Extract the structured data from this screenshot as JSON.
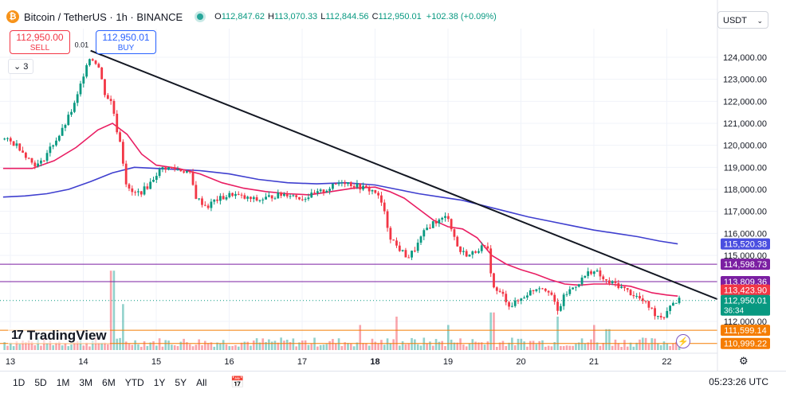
{
  "header": {
    "coin_glyph": "₿",
    "symbol": "Bitcoin / TetherUS · 1h · BINANCE",
    "o_label": "O",
    "o": "112,847.62",
    "h_label": "H",
    "h": "113,070.33",
    "l_label": "L",
    "l": "112,844.56",
    "c_label": "C",
    "c": "112,950.01",
    "change": "+102.38 (+0.09%)"
  },
  "trade": {
    "sell_price": "112,950.00",
    "sell_label": "SELL",
    "buy_price": "112,950.01",
    "buy_label": "BUY"
  },
  "collapse_label": "3",
  "currency": {
    "label": "USDT",
    "caret": "⌄"
  },
  "logo": {
    "mark": "17",
    "text": "TradingView"
  },
  "timeframes": [
    "1D",
    "5D",
    "1M",
    "3M",
    "6M",
    "YTD",
    "1Y",
    "5Y",
    "All"
  ],
  "calendar_icon": "📅",
  "clock": "05:23:26 UTC",
  "gear_icon": "⚙",
  "bolt_icon": "⚡",
  "chart_data": {
    "type": "candlestick",
    "timeframe": "1h",
    "x_ticks": [
      "13",
      "14",
      "15",
      "16",
      "17",
      "18",
      "19",
      "20",
      "21",
      "22"
    ],
    "y_ticks": [
      "124,000.00",
      "123,000.00",
      "122,000.00",
      "121,000.00",
      "120,000.00",
      "119,000.00",
      "118,000.00",
      "117,000.00",
      "116,000.00",
      "115,000.00",
      "112,000.00"
    ],
    "y_range": [
      110700,
      125300
    ],
    "fib_top_label": "0.01",
    "price_tags": [
      {
        "label": "115,520.38",
        "value": 115520.38,
        "color": "#4a4ee0"
      },
      {
        "label": "114,598.73",
        "value": 114598.73,
        "color": "#7b1fa2"
      },
      {
        "label": "113,809.36",
        "value": 113809.36,
        "color": "#7b1fa2"
      },
      {
        "label": "113,423.90",
        "value": 113423.9,
        "color": "#f23645"
      },
      {
        "label": "112,950.01",
        "sub": "36:34",
        "value": 112950.01,
        "color": "#089981"
      },
      {
        "label": "111,599.14",
        "value": 111599.14,
        "color": "#f57c00"
      },
      {
        "label": "110,999.22",
        "value": 110999.22,
        "color": "#f57c00"
      }
    ],
    "horizontal_lines": [
      {
        "value": 114598.73,
        "color": "#7b1fa2"
      },
      {
        "value": 113809.36,
        "color": "#7b1fa2"
      },
      {
        "value": 111599.14,
        "color": "#f57c00"
      },
      {
        "value": 110999.22,
        "color": "#f57c00"
      }
    ],
    "last_price": 112950.01,
    "trendline": [
      {
        "day": 14.1,
        "price": 124300
      },
      {
        "day": 22.7,
        "price": 113000
      }
    ],
    "ma_fast": [
      [
        12.9,
        118950
      ],
      [
        13.3,
        118950
      ],
      [
        13.6,
        119300
      ],
      [
        13.9,
        119900
      ],
      [
        14.2,
        120700
      ],
      [
        14.4,
        121000
      ],
      [
        14.6,
        120500
      ],
      [
        14.8,
        119600
      ],
      [
        15.0,
        119100
      ],
      [
        15.3,
        118950
      ],
      [
        15.6,
        118700
      ],
      [
        15.9,
        118300
      ],
      [
        16.2,
        118050
      ],
      [
        16.5,
        117900
      ],
      [
        16.8,
        117800
      ],
      [
        17.1,
        117750
      ],
      [
        17.4,
        117900
      ],
      [
        17.7,
        118050
      ],
      [
        18.0,
        118100
      ],
      [
        18.2,
        117900
      ],
      [
        18.4,
        117600
      ],
      [
        18.6,
        117100
      ],
      [
        18.8,
        116600
      ],
      [
        19.0,
        116300
      ],
      [
        19.2,
        116200
      ],
      [
        19.4,
        115800
      ],
      [
        19.6,
        115000
      ],
      [
        19.8,
        114600
      ],
      [
        20.0,
        114350
      ],
      [
        20.2,
        114150
      ],
      [
        20.4,
        113900
      ],
      [
        20.6,
        113700
      ],
      [
        20.8,
        113650
      ],
      [
        21.0,
        113700
      ],
      [
        21.2,
        113700
      ],
      [
        21.5,
        113600
      ],
      [
        21.8,
        113300
      ],
      [
        22.0,
        113200
      ],
      [
        22.15,
        113150
      ]
    ],
    "ma_slow": [
      [
        12.9,
        117650
      ],
      [
        13.2,
        117700
      ],
      [
        13.5,
        117800
      ],
      [
        13.8,
        118000
      ],
      [
        14.1,
        118350
      ],
      [
        14.4,
        118750
      ],
      [
        14.7,
        119000
      ],
      [
        15.0,
        118950
      ],
      [
        15.3,
        118900
      ],
      [
        15.6,
        118850
      ],
      [
        16.0,
        118700
      ],
      [
        16.4,
        118450
      ],
      [
        16.8,
        118300
      ],
      [
        17.2,
        118250
      ],
      [
        17.6,
        118300
      ],
      [
        18.0,
        118200
      ],
      [
        18.3,
        118000
      ],
      [
        18.6,
        117800
      ],
      [
        18.9,
        117650
      ],
      [
        19.2,
        117500
      ],
      [
        19.5,
        117250
      ],
      [
        19.8,
        117000
      ],
      [
        20.1,
        116750
      ],
      [
        20.4,
        116550
      ],
      [
        20.7,
        116350
      ],
      [
        21.0,
        116150
      ],
      [
        21.3,
        116000
      ],
      [
        21.6,
        115850
      ],
      [
        21.9,
        115650
      ],
      [
        22.15,
        115520
      ]
    ],
    "price_path": [
      [
        12.9,
        120300
      ],
      [
        13.1,
        120000
      ],
      [
        13.3,
        119200
      ],
      [
        13.4,
        119100
      ],
      [
        13.55,
        119900
      ],
      [
        13.7,
        120600
      ],
      [
        13.8,
        121300
      ],
      [
        13.9,
        122000
      ],
      [
        14.0,
        123200
      ],
      [
        14.05,
        123800
      ],
      [
        14.1,
        124000
      ],
      [
        14.2,
        123700
      ],
      [
        14.3,
        122300
      ],
      [
        14.4,
        121900
      ],
      [
        14.45,
        120800
      ],
      [
        14.5,
        120300
      ],
      [
        14.6,
        118000
      ],
      [
        14.7,
        117800
      ],
      [
        14.8,
        117900
      ],
      [
        14.9,
        118200
      ],
      [
        15.0,
        118700
      ],
      [
        15.1,
        119000
      ],
      [
        15.3,
        118900
      ],
      [
        15.45,
        118800
      ],
      [
        15.55,
        117600
      ],
      [
        15.7,
        117200
      ],
      [
        15.8,
        117500
      ],
      [
        15.9,
        117600
      ],
      [
        16.05,
        117800
      ],
      [
        16.2,
        117600
      ],
      [
        16.4,
        117500
      ],
      [
        16.6,
        117700
      ],
      [
        16.8,
        117800
      ],
      [
        17.0,
        117600
      ],
      [
        17.2,
        117800
      ],
      [
        17.4,
        118100
      ],
      [
        17.55,
        118400
      ],
      [
        17.7,
        118200
      ],
      [
        17.9,
        118000
      ],
      [
        18.0,
        117900
      ],
      [
        18.1,
        117300
      ],
      [
        18.2,
        115900
      ],
      [
        18.3,
        115400
      ],
      [
        18.45,
        114900
      ],
      [
        18.55,
        115300
      ],
      [
        18.7,
        116200
      ],
      [
        18.8,
        116500
      ],
      [
        18.9,
        116600
      ],
      [
        19.0,
        116800
      ],
      [
        19.05,
        116200
      ],
      [
        19.15,
        115200
      ],
      [
        19.3,
        115000
      ],
      [
        19.45,
        115400
      ],
      [
        19.55,
        115200
      ],
      [
        19.62,
        113500
      ],
      [
        19.75,
        113200
      ],
      [
        19.85,
        112700
      ],
      [
        19.95,
        112900
      ],
      [
        20.1,
        113300
      ],
      [
        20.25,
        113600
      ],
      [
        20.4,
        113400
      ],
      [
        20.5,
        112400
      ],
      [
        20.6,
        113200
      ],
      [
        20.8,
        113800
      ],
      [
        20.95,
        114300
      ],
      [
        21.05,
        114200
      ],
      [
        21.15,
        113800
      ],
      [
        21.3,
        113700
      ],
      [
        21.45,
        113400
      ],
      [
        21.6,
        113100
      ],
      [
        21.75,
        112700
      ],
      [
        21.85,
        112300
      ],
      [
        21.95,
        112200
      ],
      [
        22.05,
        112800
      ],
      [
        22.15,
        112950
      ]
    ],
    "volume_spikes": [
      [
        14.4,
        0.95
      ],
      [
        14.55,
        0.55
      ],
      [
        17.8,
        0.3
      ],
      [
        18.3,
        0.4
      ],
      [
        19.0,
        0.3
      ],
      [
        19.6,
        0.45
      ],
      [
        20.5,
        0.4
      ],
      [
        21.0,
        0.3
      ],
      [
        21.2,
        0.25
      ]
    ],
    "series": [
      {
        "name": "",
        "color": "#e91e63",
        "role": "fast moving average"
      },
      {
        "name": "",
        "color": "#3f3fcf",
        "role": "slow moving average"
      }
    ]
  }
}
